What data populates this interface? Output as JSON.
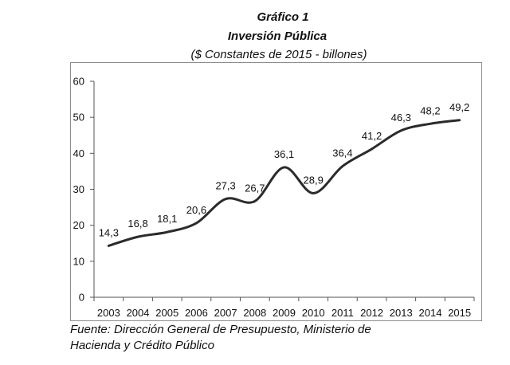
{
  "chart_data": {
    "type": "line",
    "title": "Gráfico 1",
    "subtitle": "Inversión Pública",
    "units_note": "($ Constantes de 2015 - billones)",
    "categories": [
      "2003",
      "2004",
      "2005",
      "2006",
      "2007",
      "2008",
      "2009",
      "2010",
      "2011",
      "2012",
      "2013",
      "2014",
      "2015"
    ],
    "series": [
      {
        "values": [
          14.3,
          16.8,
          18.1,
          20.6,
          27.3,
          26.7,
          36.1,
          28.9,
          36.4,
          41.2,
          46.3,
          48.2,
          49.2
        ],
        "data_labels": [
          "14,3",
          "16,8",
          "18,1",
          "20,6",
          "27,3",
          "26,7",
          "36,1",
          "28,9",
          "36,4",
          "41,2",
          "46,3",
          "48,2",
          "49,2"
        ],
        "color": "#2b2b2b",
        "smooth": true
      }
    ],
    "ylim": [
      0,
      60
    ],
    "yticks": [
      0,
      10,
      20,
      30,
      40,
      50,
      60
    ],
    "ytick_labels": [
      "0",
      "10",
      "20",
      "30",
      "40",
      "50",
      "60"
    ],
    "grid": false,
    "legend": "none"
  },
  "source": {
    "line1": "Fuente: Dirección General de Presupuesto, Ministerio de",
    "line2": "Hacienda y Crédito Público"
  },
  "colors": {
    "line": "#2b2b2b",
    "axis": "#555555",
    "border": "#8c8c8c",
    "text": "#111111"
  }
}
